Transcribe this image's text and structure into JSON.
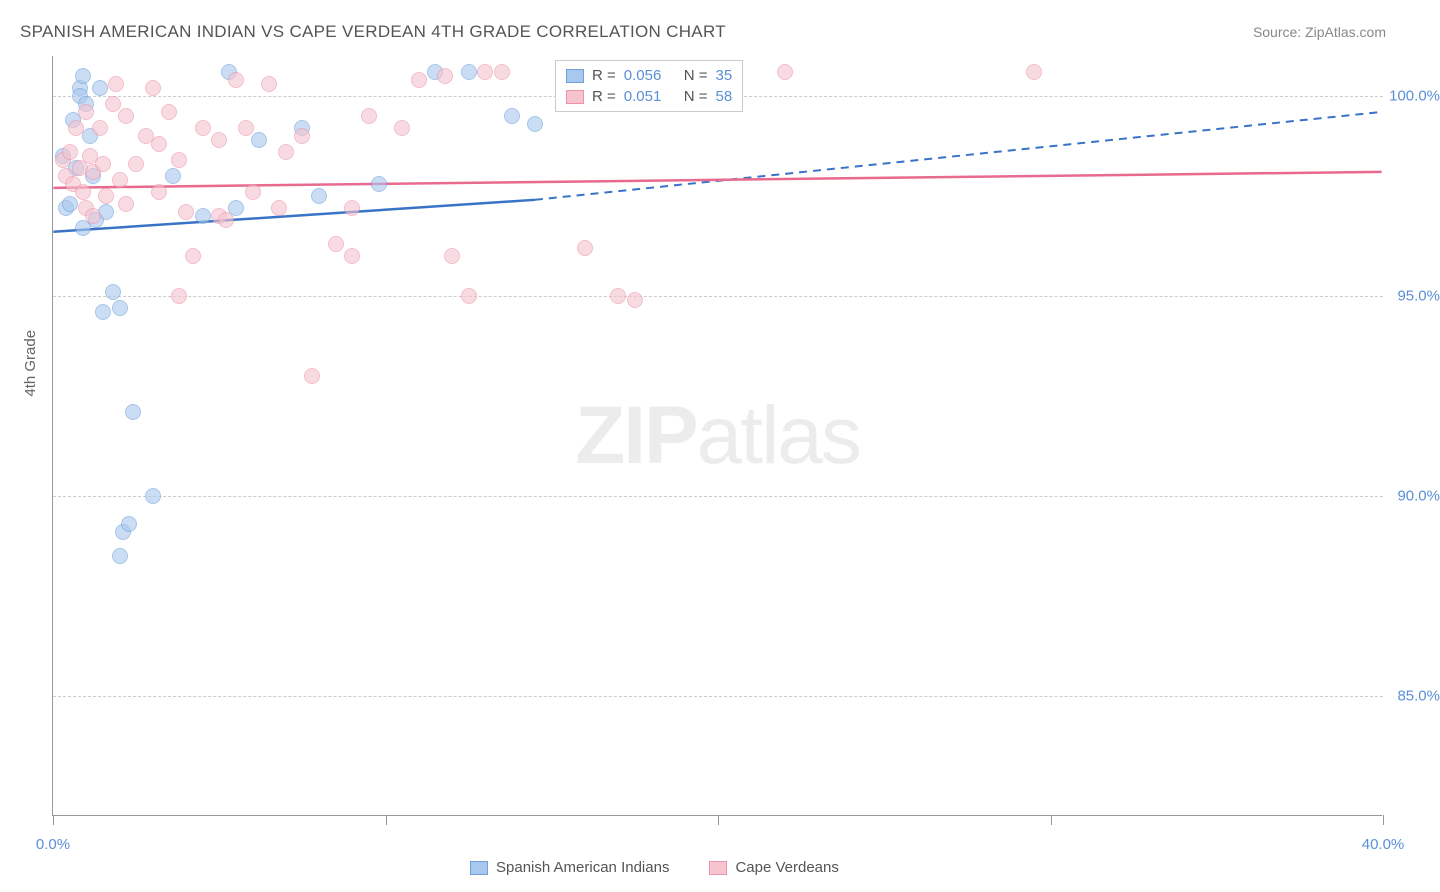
{
  "title": "SPANISH AMERICAN INDIAN VS CAPE VERDEAN 4TH GRADE CORRELATION CHART",
  "source": "Source: ZipAtlas.com",
  "ylabel": "4th Grade",
  "watermark": {
    "bold": "ZIP",
    "light": "atlas"
  },
  "chart": {
    "type": "scatter",
    "background_color": "#ffffff",
    "grid_color": "#cccccc",
    "axis_color": "#999999",
    "tick_color": "#5b8fd6",
    "xlim": [
      0,
      40
    ],
    "ylim": [
      82,
      101
    ],
    "xticks": [
      {
        "value": 0,
        "label": "0.0%"
      },
      {
        "value": 40,
        "label": "40.0%"
      }
    ],
    "xtick_minor": [
      10,
      20,
      30
    ],
    "yticks": [
      {
        "value": 85,
        "label": "85.0%"
      },
      {
        "value": 90,
        "label": "90.0%"
      },
      {
        "value": 95,
        "label": "95.0%"
      },
      {
        "value": 100,
        "label": "100.0%"
      }
    ],
    "series": [
      {
        "name": "Spanish American Indians",
        "fill": "#a9c8ed",
        "stroke": "#6ea0db",
        "R": 0.056,
        "N": 35,
        "trend": {
          "x1": 0,
          "y1": 96.6,
          "x2_solid": 14.5,
          "y2_solid": 97.4,
          "x2": 40,
          "y2": 99.6,
          "stroke": "#3973c6",
          "width": 2.5
        },
        "points": [
          [
            0.3,
            98.5
          ],
          [
            0.4,
            97.2
          ],
          [
            0.5,
            97.3
          ],
          [
            0.8,
            100.2
          ],
          [
            0.8,
            100.0
          ],
          [
            0.9,
            100.5
          ],
          [
            0.6,
            99.4
          ],
          [
            0.7,
            98.2
          ],
          [
            0.9,
            96.7
          ],
          [
            1.0,
            99.8
          ],
          [
            1.1,
            99.0
          ],
          [
            1.2,
            98.0
          ],
          [
            1.3,
            96.9
          ],
          [
            1.4,
            100.2
          ],
          [
            1.5,
            94.6
          ],
          [
            1.6,
            97.1
          ],
          [
            1.8,
            95.1
          ],
          [
            2.0,
            94.7
          ],
          [
            2.1,
            89.1
          ],
          [
            2.3,
            89.3
          ],
          [
            2.0,
            88.5
          ],
          [
            2.4,
            92.1
          ],
          [
            3.0,
            90.0
          ],
          [
            3.6,
            98.0
          ],
          [
            4.5,
            97.0
          ],
          [
            5.3,
            100.6
          ],
          [
            5.5,
            97.2
          ],
          [
            6.2,
            98.9
          ],
          [
            7.5,
            99.2
          ],
          [
            8.0,
            97.5
          ],
          [
            9.8,
            97.8
          ],
          [
            11.5,
            100.6
          ],
          [
            12.5,
            100.6
          ],
          [
            13.8,
            99.5
          ],
          [
            14.5,
            99.3
          ]
        ]
      },
      {
        "name": "Cape Verdeans",
        "fill": "#f5c4cf",
        "stroke": "#ed93ab",
        "R": 0.051,
        "N": 58,
        "trend": {
          "x1": 0,
          "y1": 97.7,
          "x2_solid": 40,
          "y2_solid": 98.1,
          "x2": 40,
          "y2": 98.1,
          "stroke": "#e86a8e",
          "width": 2.5
        },
        "points": [
          [
            0.3,
            98.4
          ],
          [
            0.4,
            98.0
          ],
          [
            0.5,
            98.6
          ],
          [
            0.6,
            97.8
          ],
          [
            0.7,
            99.2
          ],
          [
            0.8,
            98.2
          ],
          [
            0.9,
            97.6
          ],
          [
            1.0,
            99.6
          ],
          [
            1.0,
            97.2
          ],
          [
            1.1,
            98.5
          ],
          [
            1.2,
            98.1
          ],
          [
            1.2,
            97.0
          ],
          [
            1.4,
            99.2
          ],
          [
            1.5,
            98.3
          ],
          [
            1.6,
            97.5
          ],
          [
            1.8,
            99.8
          ],
          [
            1.9,
            100.3
          ],
          [
            2.0,
            97.9
          ],
          [
            2.2,
            99.5
          ],
          [
            2.2,
            97.3
          ],
          [
            2.5,
            98.3
          ],
          [
            2.8,
            99.0
          ],
          [
            3.0,
            100.2
          ],
          [
            3.2,
            98.8
          ],
          [
            3.2,
            97.6
          ],
          [
            3.5,
            99.6
          ],
          [
            3.8,
            98.4
          ],
          [
            3.8,
            95.0
          ],
          [
            4.0,
            97.1
          ],
          [
            4.2,
            96.0
          ],
          [
            4.5,
            99.2
          ],
          [
            5.0,
            98.9
          ],
          [
            5.0,
            97.0
          ],
          [
            5.2,
            96.9
          ],
          [
            5.5,
            100.4
          ],
          [
            5.8,
            99.2
          ],
          [
            6.0,
            97.6
          ],
          [
            6.5,
            100.3
          ],
          [
            6.8,
            97.2
          ],
          [
            7.0,
            98.6
          ],
          [
            7.5,
            99.0
          ],
          [
            7.8,
            93.0
          ],
          [
            8.5,
            96.3
          ],
          [
            9.0,
            96.0
          ],
          [
            9.0,
            97.2
          ],
          [
            9.5,
            99.5
          ],
          [
            10.5,
            99.2
          ],
          [
            11.0,
            100.4
          ],
          [
            11.8,
            100.5
          ],
          [
            12.0,
            96.0
          ],
          [
            12.5,
            95.0
          ],
          [
            13.0,
            100.6
          ],
          [
            13.5,
            100.6
          ],
          [
            16.0,
            96.2
          ],
          [
            17.0,
            95.0
          ],
          [
            17.5,
            94.9
          ],
          [
            22.0,
            100.6
          ],
          [
            29.5,
            100.6
          ]
        ]
      }
    ]
  },
  "legend_top_label_R": "R =",
  "legend_top_label_N": "N ="
}
